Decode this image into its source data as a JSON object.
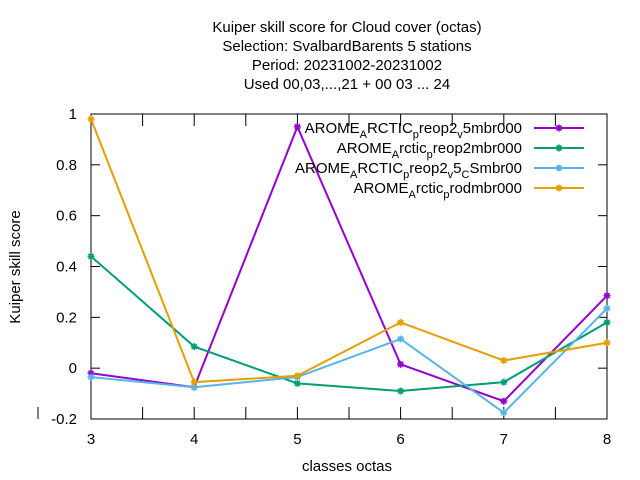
{
  "chart_data": {
    "type": "line",
    "title_lines": [
      "Kuiper skill score  for Cloud cover (octas)",
      "Selection: SvalbardBarents       5 stations",
      "Period: 20231002-20231002",
      "Used  00,03,...,21  + 00 03 ... 24"
    ],
    "xlabel": "classes octas",
    "ylabel": "Kuiper skill score",
    "x": [
      3,
      4,
      5,
      6,
      7,
      8
    ],
    "xlim": [
      3,
      8
    ],
    "ylim": [
      -0.2,
      1.0
    ],
    "xticks": [
      "3",
      "4",
      "5",
      "6",
      "7",
      "8"
    ],
    "yticks": [
      {
        "value": -0.2,
        "label": "-0.2"
      },
      {
        "value": 0,
        "label": "0"
      },
      {
        "value": 0.2,
        "label": "0.2"
      },
      {
        "value": 0.4,
        "label": "0.4"
      },
      {
        "value": 0.6,
        "label": "0.6"
      },
      {
        "value": 0.8,
        "label": "0.8"
      },
      {
        "value": 1.0,
        "label": "1"
      }
    ],
    "legend_position": "top-right",
    "series": [
      {
        "name_parts": [
          [
            "AROME",
            ""
          ],
          [
            "A",
            "sub"
          ],
          [
            "RCTIC",
            ""
          ],
          [
            "p",
            "sub"
          ],
          [
            "reop2",
            ""
          ],
          [
            "v",
            "sub"
          ],
          [
            "5mbr000",
            ""
          ]
        ],
        "color": "#9400d3",
        "values": [
          -0.02,
          -0.075,
          0.95,
          0.015,
          -0.13,
          0.285
        ]
      },
      {
        "name_parts": [
          [
            "AROME",
            ""
          ],
          [
            "A",
            "sub"
          ],
          [
            "rctic",
            ""
          ],
          [
            "p",
            "sub"
          ],
          [
            "reop2mbr000",
            ""
          ]
        ],
        "color": "#009e73",
        "values": [
          0.44,
          0.085,
          -0.06,
          -0.09,
          -0.055,
          0.18
        ]
      },
      {
        "name_parts": [
          [
            "AROME",
            ""
          ],
          [
            "A",
            "sub"
          ],
          [
            "RCTIC",
            ""
          ],
          [
            "p",
            "sub"
          ],
          [
            "reop2",
            ""
          ],
          [
            "v",
            "sub"
          ],
          [
            "5",
            ""
          ],
          [
            "C",
            "sub"
          ],
          [
            "Smbr00",
            ""
          ]
        ],
        "color": "#56b4e9",
        "values": [
          -0.035,
          -0.075,
          -0.035,
          0.115,
          -0.175,
          0.235
        ]
      },
      {
        "name_parts": [
          [
            "AROME",
            ""
          ],
          [
            "A",
            "sub"
          ],
          [
            "rctic",
            ""
          ],
          [
            "p",
            "sub"
          ],
          [
            "rodmbr000",
            ""
          ]
        ],
        "color": "#e69f00",
        "values": [
          0.98,
          -0.055,
          -0.03,
          0.18,
          0.03,
          0.1
        ]
      }
    ]
  }
}
